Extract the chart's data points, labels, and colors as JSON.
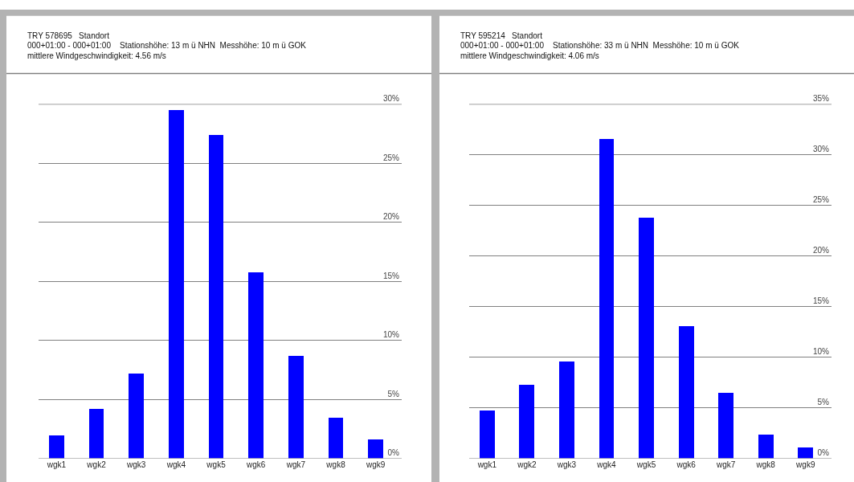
{
  "chart_data": [
    {
      "type": "bar",
      "title": "TRY 578695   Standort",
      "subtitle": "000+01:00 - 000+01:00    Stationshöhe: 13 m ü NHN  Messhöhe: 10 m ü GOK\nmittlere Windgeschwindigkeit: 4.56 m/s",
      "categories": [
        "wgk1",
        "wgk2",
        "wgk3",
        "wgk4",
        "wgk5",
        "wgk6",
        "wgk7",
        "wgk8",
        "wgk9"
      ],
      "values": [
        2.0,
        4.2,
        7.2,
        29.5,
        27.4,
        15.8,
        8.7,
        3.5,
        1.6
      ],
      "color": "#0000ff",
      "ylim": [
        0,
        30
      ],
      "yticks": [
        {
          "value": 0,
          "label": "0%"
        },
        {
          "value": 5,
          "label": "5%"
        },
        {
          "value": 10,
          "label": "10%"
        },
        {
          "value": 15,
          "label": "15%"
        },
        {
          "value": 20,
          "label": "20%"
        },
        {
          "value": 25,
          "label": "25%"
        },
        {
          "value": 30,
          "label": "30%"
        }
      ],
      "grid": "y"
    },
    {
      "type": "bar",
      "title": "TRY 595214   Standort",
      "subtitle": "000+01:00 - 000+01:00    Stationshöhe: 33 m ü NHN  Messhöhe: 10 m ü GOK\nmittlere Windgeschwindigkeit: 4.06 m/s",
      "categories": [
        "wgk1",
        "wgk2",
        "wgk3",
        "wgk4",
        "wgk5",
        "wgk6",
        "wgk7",
        "wgk8",
        "wgk9"
      ],
      "values": [
        4.8,
        7.3,
        9.6,
        31.6,
        23.8,
        13.1,
        6.5,
        2.4,
        1.1
      ],
      "color": "#0000ff",
      "ylim": [
        0,
        35
      ],
      "yticks": [
        {
          "value": 0,
          "label": "0%"
        },
        {
          "value": 5,
          "label": "5%"
        },
        {
          "value": 10,
          "label": "10%"
        },
        {
          "value": 15,
          "label": "15%"
        },
        {
          "value": 20,
          "label": "20%"
        },
        {
          "value": 25,
          "label": "25%"
        },
        {
          "value": 30,
          "label": "30%"
        },
        {
          "value": 35,
          "label": "35%"
        }
      ],
      "grid": "y"
    }
  ]
}
